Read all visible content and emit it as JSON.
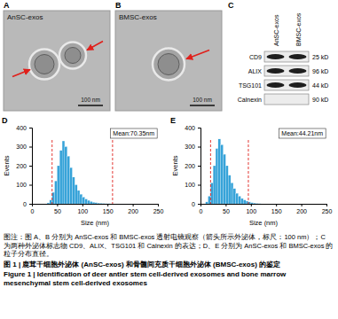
{
  "images": [
    {
      "panel": "A",
      "label": "AnSC-exos",
      "scale_bar": "100 nm"
    },
    {
      "panel": "B",
      "label": "BMSC-exos",
      "scale_bar": "100 nm"
    }
  ],
  "western_blot": {
    "panel": "C",
    "lanes": [
      "AnSC-exos",
      "BMSC-exos"
    ],
    "rows": [
      {
        "protein": "CD9",
        "size": "25 kD",
        "present": [
          true,
          true
        ]
      },
      {
        "protein": "ALIX",
        "size": "96 kD",
        "present": [
          true,
          true
        ]
      },
      {
        "protein": "TSG101",
        "size": "44 kD",
        "present": [
          true,
          true
        ]
      },
      {
        "protein": "Calnexin",
        "size": "90 kD",
        "present": [
          false,
          false
        ]
      }
    ]
  },
  "chart_data": [
    {
      "type": "histogram",
      "panel": "D",
      "annotation": "Mean:70.35nm",
      "x_label": "Size (nm)",
      "y_label": "Events",
      "color": "#36a3d9",
      "bins": [
        30,
        35,
        40,
        45,
        50,
        55,
        60,
        65,
        70,
        75,
        80,
        85,
        90,
        95,
        100,
        105,
        110,
        115,
        120,
        125,
        130,
        135,
        140,
        145,
        150,
        155,
        160,
        165,
        170
      ],
      "counts": [
        5,
        20,
        60,
        120,
        200,
        280,
        330,
        300,
        250,
        190,
        140,
        100,
        70,
        50,
        35,
        25,
        18,
        12,
        8,
        6,
        4,
        3,
        2,
        1,
        1,
        0,
        0,
        0
      ],
      "reference_lines": [
        40,
        160
      ],
      "xlim": [
        0,
        250
      ],
      "xticks": [
        0,
        50,
        100,
        150,
        200,
        250
      ],
      "ylim": [
        0,
        400
      ],
      "yticks": [
        0,
        100,
        200,
        300,
        400
      ]
    },
    {
      "type": "histogram",
      "panel": "E",
      "annotation": "Mean:44.21nm",
      "x_label": "Size (nm)",
      "y_label": "Events",
      "color": "#36a3d9",
      "bins": [
        10,
        15,
        20,
        25,
        30,
        35,
        40,
        45,
        50,
        55,
        60,
        65,
        70,
        75,
        80,
        85,
        90,
        95,
        100,
        105,
        110,
        115,
        120
      ],
      "counts": [
        10,
        40,
        110,
        200,
        290,
        340,
        310,
        260,
        200,
        150,
        110,
        80,
        55,
        40,
        28,
        20,
        14,
        10,
        6,
        4,
        2,
        1
      ],
      "reference_lines": [
        20,
        95
      ],
      "xlim": [
        0,
        250
      ],
      "xticks": [
        0,
        50,
        100,
        150,
        200,
        250
      ],
      "ylim": [
        0,
        400
      ],
      "yticks": [
        0,
        100,
        200,
        300,
        400
      ]
    }
  ],
  "caption": "图注：图 A、B 分别为 AnSC-exos 和 BMSC-exos 透射电镜观察（箭头所示外泌体，标尺：100 nm）；C 为两种外泌体标志物 CD9、ALIX、TSG101 和 Calnexin 的表达；D、E 分别为 AnSC-exos 和 BMSC-exos 的粒子分布直径。",
  "title_cn": "图 1 | 鹿茸干细胞外泌体 (AnSC-exos) 和骨髓间充质干细胞外泌体 (BMSC-exos) 的鉴定",
  "title_en": "Figure 1 | Identification of deer antler stem cell-derived exosomes and bone marrow mesenchymal stem cell-derived exosomes"
}
